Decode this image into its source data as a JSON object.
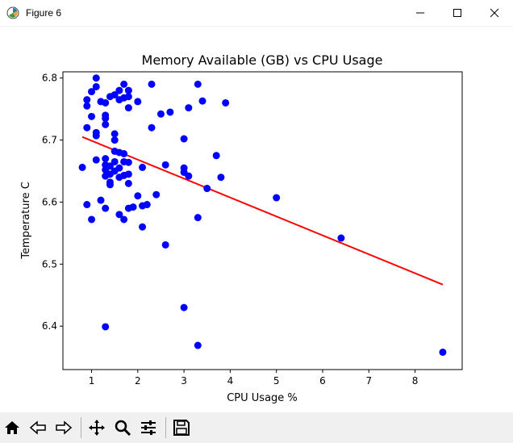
{
  "window": {
    "title": "Figure 6",
    "controls": [
      "minimize-icon",
      "maximize-icon",
      "close-icon"
    ]
  },
  "toolbar": {
    "tools": [
      "home-icon",
      "back-icon",
      "forward-icon",
      "pan-icon",
      "zoom-icon",
      "configure-subplots-icon",
      "save-icon"
    ]
  },
  "colors": {
    "points": "#0000ff",
    "fit_line": "#ff0000",
    "axes": "#000000"
  },
  "chart_data": {
    "type": "scatter",
    "title": "Memory Available (GB) vs CPU Usage",
    "xlabel": "CPU Usage %",
    "ylabel": "Temperature C",
    "xlim": [
      0.38,
      9.02
    ],
    "ylim": [
      6.33,
      6.81
    ],
    "xticks": [
      1,
      2,
      3,
      4,
      5,
      6,
      7,
      8
    ],
    "xtick_labels": [
      "1",
      "2",
      "3",
      "4",
      "5",
      "6",
      "7",
      "8"
    ],
    "yticks": [
      6.4,
      6.5,
      6.6,
      6.7,
      6.8
    ],
    "ytick_labels": [
      "6.4",
      "6.5",
      "6.6",
      "6.7",
      "6.8"
    ],
    "grid": false,
    "points": [
      [
        1.1,
        6.8
      ],
      [
        1.7,
        6.79
      ],
      [
        2.3,
        6.79
      ],
      [
        3.3,
        6.79
      ],
      [
        1.0,
        6.778
      ],
      [
        1.3,
        6.76
      ],
      [
        1.4,
        6.77
      ],
      [
        1.6,
        6.78
      ],
      [
        1.8,
        6.78
      ],
      [
        0.9,
        6.765
      ],
      [
        0.9,
        6.755
      ],
      [
        1.2,
        6.762
      ],
      [
        1.5,
        6.773
      ],
      [
        1.6,
        6.765
      ],
      [
        1.7,
        6.768
      ],
      [
        2.0,
        6.762
      ],
      [
        3.4,
        6.763
      ],
      [
        3.9,
        6.76
      ],
      [
        1.1,
        6.786
      ],
      [
        1.8,
        6.77
      ],
      [
        1.8,
        6.752
      ],
      [
        3.1,
        6.752
      ],
      [
        2.7,
        6.745
      ],
      [
        2.5,
        6.742
      ],
      [
        1.0,
        6.738
      ],
      [
        1.3,
        6.74
      ],
      [
        1.3,
        6.735
      ],
      [
        0.9,
        6.72
      ],
      [
        1.3,
        6.725
      ],
      [
        2.3,
        6.72
      ],
      [
        1.1,
        6.712
      ],
      [
        1.1,
        6.707
      ],
      [
        1.5,
        6.71
      ],
      [
        1.5,
        6.7
      ],
      [
        3.0,
        6.702
      ],
      [
        1.5,
        6.682
      ],
      [
        1.6,
        6.68
      ],
      [
        1.7,
        6.678
      ],
      [
        3.7,
        6.675
      ],
      [
        1.1,
        6.668
      ],
      [
        1.3,
        6.67
      ],
      [
        1.5,
        6.665
      ],
      [
        1.7,
        6.665
      ],
      [
        1.8,
        6.664
      ],
      [
        1.3,
        6.66
      ],
      [
        1.4,
        6.658
      ],
      [
        1.6,
        6.655
      ],
      [
        2.1,
        6.656
      ],
      [
        2.6,
        6.66
      ],
      [
        0.8,
        6.656
      ],
      [
        3.0,
        6.655
      ],
      [
        1.3,
        6.652
      ],
      [
        1.5,
        6.65
      ],
      [
        3.0,
        6.648
      ],
      [
        1.4,
        6.645
      ],
      [
        1.3,
        6.642
      ],
      [
        1.6,
        6.64
      ],
      [
        1.7,
        6.643
      ],
      [
        1.8,
        6.645
      ],
      [
        3.1,
        6.642
      ],
      [
        3.8,
        6.64
      ],
      [
        1.4,
        6.632
      ],
      [
        1.4,
        6.628
      ],
      [
        1.8,
        6.63
      ],
      [
        3.5,
        6.622
      ],
      [
        2.0,
        6.61
      ],
      [
        2.4,
        6.612
      ],
      [
        5.0,
        6.607
      ],
      [
        1.2,
        6.603
      ],
      [
        0.9,
        6.596
      ],
      [
        1.3,
        6.59
      ],
      [
        1.8,
        6.59
      ],
      [
        1.9,
        6.592
      ],
      [
        2.1,
        6.594
      ],
      [
        2.2,
        6.596
      ],
      [
        1.6,
        6.58
      ],
      [
        1.7,
        6.572
      ],
      [
        1.0,
        6.572
      ],
      [
        3.3,
        6.575
      ],
      [
        2.1,
        6.56
      ],
      [
        6.4,
        6.542
      ],
      [
        2.6,
        6.531
      ],
      [
        3.0,
        6.43
      ],
      [
        1.3,
        6.399
      ],
      [
        3.3,
        6.369
      ],
      [
        8.6,
        6.358
      ]
    ],
    "fit_line": {
      "x": [
        0.8,
        8.6
      ],
      "y": [
        6.705,
        6.467
      ]
    }
  }
}
